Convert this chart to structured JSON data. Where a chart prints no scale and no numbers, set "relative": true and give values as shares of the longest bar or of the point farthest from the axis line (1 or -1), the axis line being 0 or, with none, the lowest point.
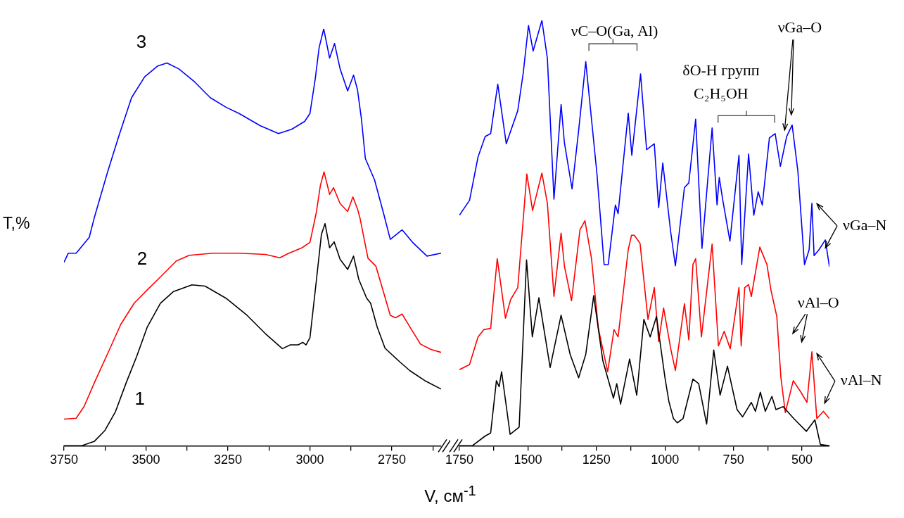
{
  "chart_data": [
    {
      "type": "line",
      "relative": true,
      "xlim": [
        3750,
        2600
      ],
      "xticks": [
        3750,
        {
          "value": 3625,
          "label": null
        },
        3500,
        {
          "value": 3375,
          "label": null
        },
        3250,
        {
          "value": 3125,
          "label": null
        },
        3000,
        {
          "value": 2875,
          "label": null
        },
        2750,
        {
          "value": 2625,
          "label": null
        }
      ],
      "xlabel": "V, см$^{-1}$",
      "ylabel": "T,%",
      "marker": "none",
      "series": [
        {
          "name": "1",
          "color": "#000000",
          "x": [
            3750,
            3697,
            3657,
            3625,
            3593,
            3560,
            3528,
            3496,
            3456,
            3416,
            3360,
            3320,
            3256,
            3192,
            3136,
            3084,
            3060,
            3036,
            3022,
            3012,
            3000,
            2980,
            2965,
            2954,
            2940,
            2926,
            2908,
            2885,
            2867,
            2851,
            2827,
            2815,
            2795,
            2771,
            2727,
            2695,
            2647,
            2600
          ],
          "values": [
            0,
            0,
            0.011,
            0.037,
            0.082,
            0.152,
            0.215,
            0.285,
            0.342,
            0.37,
            0.386,
            0.383,
            0.354,
            0.313,
            0.269,
            0.233,
            0.242,
            0.242,
            0.248,
            0.242,
            0.259,
            0.399,
            0.507,
            0.533,
            0.475,
            0.489,
            0.447,
            0.423,
            0.455,
            0.399,
            0.354,
            0.342,
            0.285,
            0.234,
            0.202,
            0.18,
            0.155,
            0.136
          ]
        },
        {
          "name": "2",
          "color": "#ff0000",
          "x": [
            3750,
            3713,
            3689,
            3657,
            3617,
            3577,
            3536,
            3496,
            3456,
            3408,
            3368,
            3296,
            3216,
            3136,
            3092,
            3064,
            3024,
            3000,
            2988,
            2980,
            2968,
            2957,
            2940,
            2928,
            2908,
            2885,
            2869,
            2855,
            2847,
            2823,
            2799,
            2775,
            2755,
            2739,
            2719,
            2695,
            2663,
            2631,
            2600
          ],
          "values": [
            0.064,
            0.066,
            0.094,
            0.152,
            0.221,
            0.291,
            0.342,
            0.374,
            0.405,
            0.443,
            0.457,
            0.462,
            0.462,
            0.459,
            0.451,
            0.462,
            0.475,
            0.488,
            0.532,
            0.562,
            0.625,
            0.657,
            0.603,
            0.619,
            0.581,
            0.562,
            0.597,
            0.568,
            0.545,
            0.45,
            0.431,
            0.367,
            0.313,
            0.307,
            0.316,
            0.285,
            0.244,
            0.231,
            0.224
          ]
        },
        {
          "name": "3",
          "color": "#0000ff",
          "x": [
            3750,
            3737,
            3713,
            3673,
            3657,
            3617,
            3584,
            3544,
            3504,
            3464,
            3436,
            3400,
            3352,
            3304,
            3256,
            3216,
            3152,
            3096,
            3056,
            3016,
            3000,
            2984,
            2972,
            2958,
            2940,
            2925,
            2908,
            2885,
            2867,
            2855,
            2843,
            2831,
            2803,
            2775,
            2755,
            2719,
            2687,
            2643,
            2600
          ],
          "values": [
            0.44,
            0.462,
            0.462,
            0.5,
            0.549,
            0.657,
            0.74,
            0.835,
            0.885,
            0.911,
            0.918,
            0.904,
            0.873,
            0.835,
            0.812,
            0.797,
            0.768,
            0.749,
            0.759,
            0.778,
            0.797,
            0.879,
            0.955,
            1,
            0.93,
            0.965,
            0.904,
            0.851,
            0.889,
            0.854,
            0.784,
            0.689,
            0.638,
            0.556,
            0.495,
            0.518,
            0.488,
            0.455,
            0.462
          ]
        }
      ]
    },
    {
      "type": "line",
      "relative": true,
      "xlim": [
        1750,
        400
      ],
      "xticks": [
        1750,
        {
          "value": 1625,
          "label": null
        },
        1500,
        {
          "value": 1375,
          "label": null
        },
        1250,
        {
          "value": 1125,
          "label": null
        },
        1000,
        {
          "value": 875,
          "label": null
        },
        750,
        {
          "value": 625,
          "label": null
        },
        500
      ],
      "marker": "none",
      "annotations": [
        "νC–O(Ga, Al)",
        "δO-H групп",
        "C₂H₅OH",
        "νGa–O",
        "νGa–N",
        "νAl–O",
        "νAl–N"
      ],
      "series": [
        {
          "color": "#000000",
          "x": [
            1750,
            1703,
            1656,
            1636,
            1615,
            1605,
            1596,
            1565,
            1532,
            1505,
            1484,
            1460,
            1419,
            1379,
            1346,
            1315,
            1289,
            1260,
            1227,
            1188,
            1176,
            1162,
            1129,
            1103,
            1077,
            1054,
            1031,
            1000,
            986,
            969,
            955,
            934,
            898,
            877,
            848,
            822,
            799,
            772,
            737,
            717,
            685,
            670,
            652,
            634,
            610,
            595,
            569,
            530,
            484,
            453,
            433,
            400
          ],
          "values": [
            0,
            0,
            0.023,
            0.03,
            0.153,
            0.139,
            0.174,
            0.027,
            0.044,
            0.437,
            0.256,
            0.348,
            0.184,
            0.307,
            0.215,
            0.16,
            0.215,
            0.353,
            0.201,
            0.112,
            0.146,
            0.098,
            0.204,
            0.119,
            0.297,
            0.256,
            0.304,
            0.16,
            0.105,
            0.064,
            0.054,
            0.064,
            0.157,
            0.146,
            0.051,
            0.225,
            0.119,
            0.187,
            0.085,
            0.068,
            0.102,
            0.081,
            0.126,
            0.081,
            0.116,
            0.085,
            0.092,
            0.064,
            0.034,
            0.061,
            0.003,
            0
          ]
        },
        {
          "color": "#ff0000",
          "x": [
            1750,
            1713,
            1682,
            1661,
            1636,
            1612,
            1582,
            1563,
            1537,
            1504,
            1483,
            1449,
            1429,
            1405,
            1379,
            1367,
            1341,
            1310,
            1292,
            1268,
            1243,
            1209,
            1186,
            1171,
            1134,
            1122,
            1112,
            1091,
            1062,
            1039,
            1023,
            1005,
            979,
            962,
            929,
            913,
            898,
            888,
            867,
            828,
            805,
            784,
            762,
            730,
            722,
            709,
            695,
            685,
            654,
            628,
            613,
            592,
            577,
            561,
            532,
            504,
            482,
            464,
            446,
            422,
            400
          ],
          "values": [
            0.179,
            0.191,
            0.256,
            0.273,
            0.276,
            0.44,
            0.3,
            0.344,
            0.372,
            0.639,
            0.553,
            0.641,
            0.57,
            0.351,
            0.5,
            0.423,
            0.341,
            0.508,
            0.529,
            0.44,
            0.276,
            0.174,
            0.273,
            0.256,
            0.461,
            0.495,
            0.495,
            0.476,
            0.297,
            0.372,
            0.245,
            0.324,
            0.228,
            0.177,
            0.334,
            0.249,
            0.426,
            0.44,
            0.256,
            0.474,
            0.235,
            0.269,
            0.228,
            0.372,
            0.235,
            0.372,
            0.379,
            0.351,
            0.467,
            0.426,
            0.365,
            0.304,
            0.16,
            0.078,
            0.153,
            0.126,
            0.102,
            0.221,
            0.064,
            0.081,
            0.064
          ]
        },
        {
          "color": "#0000ff",
          "x": [
            1750,
            1713,
            1682,
            1656,
            1636,
            1610,
            1579,
            1537,
            1517,
            1498,
            1481,
            1449,
            1429,
            1405,
            1379,
            1367,
            1339,
            1315,
            1289,
            1248,
            1222,
            1207,
            1181,
            1171,
            1134,
            1121,
            1089,
            1067,
            1039,
            1023,
            1008,
            979,
            962,
            929,
            913,
            888,
            865,
            828,
            810,
            802,
            789,
            763,
            730,
            720,
            695,
            676,
            660,
            645,
            619,
            598,
            579,
            556,
            536,
            515,
            491,
            474,
            464,
            456,
            438,
            415,
            400
          ],
          "values": [
            0.542,
            0.577,
            0.679,
            0.727,
            0.734,
            0.85,
            0.71,
            0.788,
            0.877,
            0.988,
            0.928,
            1,
            0.911,
            0.58,
            0.802,
            0.713,
            0.604,
            0.741,
            0.903,
            0.638,
            0.426,
            0.426,
            0.566,
            0.546,
            0.782,
            0.683,
            0.874,
            0.696,
            0.71,
            0.56,
            0.665,
            0.502,
            0.423,
            0.607,
            0.618,
            0.768,
            0.464,
            0.747,
            0.566,
            0.631,
            0.577,
            0.481,
            0.683,
            0.426,
            0.686,
            0.542,
            0.597,
            0.566,
            0.724,
            0.734,
            0.657,
            0.727,
            0.754,
            0.645,
            0.426,
            0.461,
            0.57,
            0.447,
            0.461,
            0.484,
            0.421
          ]
        }
      ]
    }
  ]
}
